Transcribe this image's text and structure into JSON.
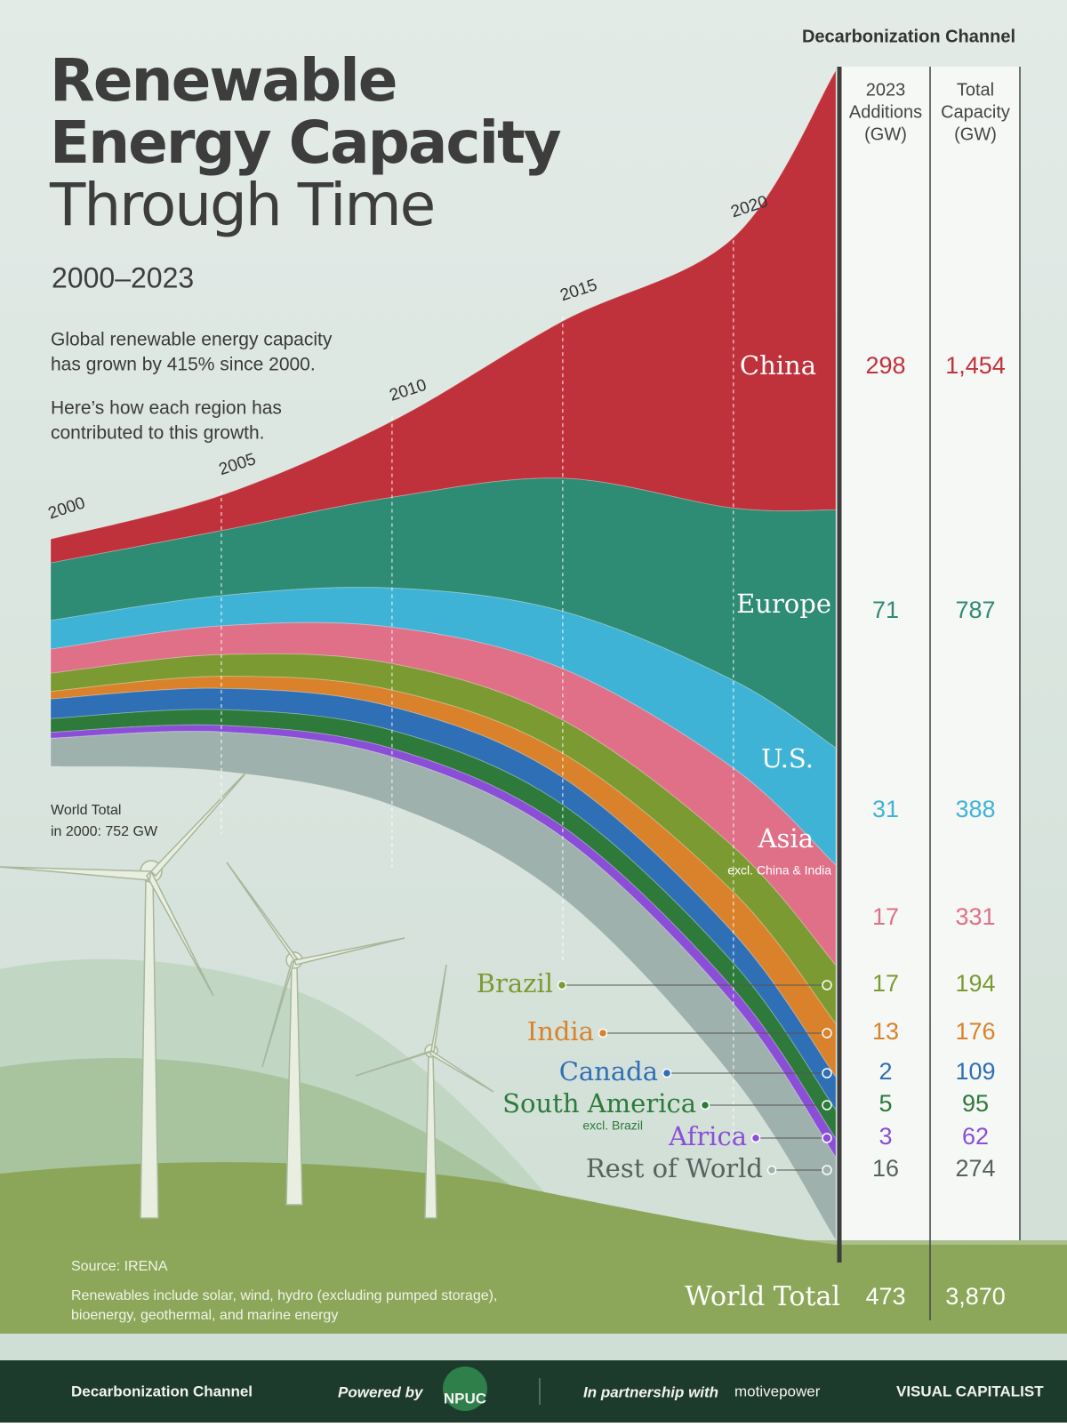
{
  "chart_data": {
    "type": "stacked-area",
    "brand": "Decarbonization Channel",
    "title": [
      "Renewable",
      "Energy Capacity",
      "Through Time"
    ],
    "subtitle": "2000–2023",
    "description": [
      "Global renewable energy capacity",
      "has grown by 415% since 2000.",
      "Here’s how each region has",
      "contributed to this growth."
    ],
    "annotation": [
      "World Total",
      "in 2000: 752 GW"
    ],
    "x": [
      2000,
      2005,
      2010,
      2015,
      2020,
      2023
    ],
    "xlim": [
      2000,
      2023
    ],
    "xticks": [
      2000,
      2005,
      2010,
      2015,
      2020
    ],
    "series": [
      {
        "name": "China",
        "color": "#c0323b",
        "values": [
          79,
          117,
          252,
          520,
          895,
          1454
        ]
      },
      {
        "name": "Europe",
        "color": "#2e8b74",
        "values": [
          190,
          215,
          300,
          440,
          570,
          787
        ]
      },
      {
        "name": "U.S.",
        "color": "#3fb3d6",
        "values": [
          95,
          100,
          130,
          190,
          290,
          388
        ]
      },
      {
        "name": "Asia",
        "subname": "excl. China & India",
        "color": "#e07088",
        "values": [
          80,
          95,
          120,
          170,
          260,
          331
        ]
      },
      {
        "name": "Brazil",
        "color": "#7c9a32",
        "values": [
          60,
          72,
          88,
          110,
          150,
          194
        ]
      },
      {
        "name": "India",
        "color": "#d9822b",
        "values": [
          25,
          40,
          55,
          80,
          135,
          176
        ]
      },
      {
        "name": "Canada",
        "color": "#2f6fb5",
        "values": [
          65,
          70,
          78,
          90,
          100,
          109
        ]
      },
      {
        "name": "South America",
        "subname": "excl. Brazil",
        "color": "#2d7a3a",
        "values": [
          45,
          52,
          60,
          72,
          85,
          95
        ]
      },
      {
        "name": "Africa",
        "color": "#8a4fd6",
        "values": [
          20,
          22,
          28,
          36,
          50,
          62
        ]
      },
      {
        "name": "Rest of World",
        "color": "#9fb1ad",
        "values": [
          93,
          130,
          160,
          200,
          245,
          274
        ]
      }
    ],
    "table": {
      "columns": [
        [
          "2023",
          "Additions",
          "(GW)"
        ],
        [
          "Total",
          "Capacity",
          "(GW)"
        ]
      ],
      "additions": [
        298,
        71,
        31,
        17,
        17,
        13,
        2,
        5,
        3,
        16
      ],
      "totals": [
        {
          "value": 1454,
          "label": "1,454"
        },
        787,
        388,
        331,
        194,
        176,
        109,
        95,
        62,
        274
      ],
      "total_row": {
        "label": "World Total",
        "additions": 473,
        "total": {
          "value": 3870,
          "label": "3,870"
        }
      }
    },
    "source": "Source: IRENA",
    "note": [
      "Renewables include solar, wind, hydro (excluding pumped storage),",
      "bioenergy, geothermal, and marine energy"
    ],
    "footer": {
      "brand": "Decarbonization Channel",
      "powered": "Powered by",
      "npuc": "NPUC",
      "partner": "In partnership with",
      "motive": "motivepower",
      "vc": "VISUAL CAPITALIST"
    }
  }
}
